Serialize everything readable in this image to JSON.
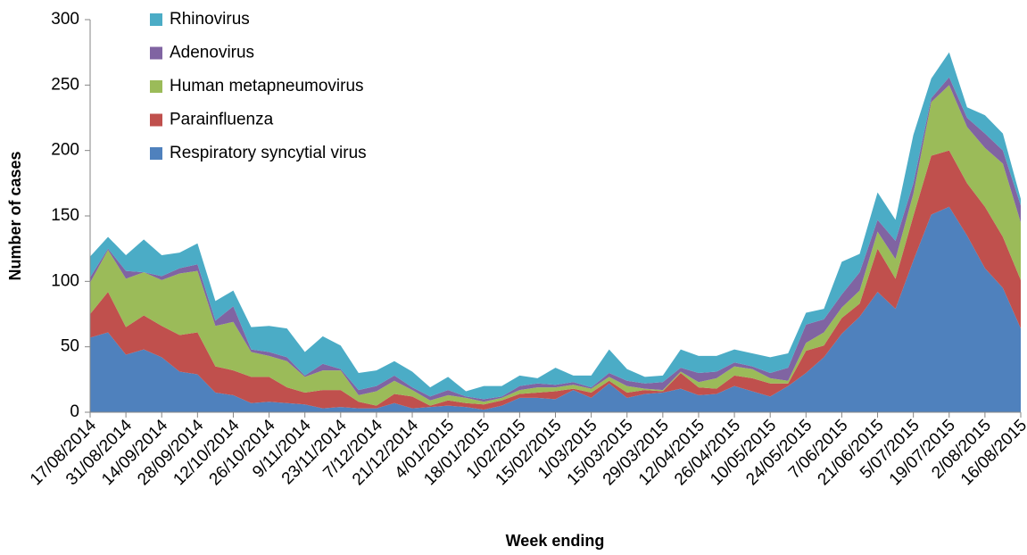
{
  "chart_data": {
    "type": "stacked-area",
    "x_label": "Week ending",
    "y_label": "Number of cases",
    "categories": [
      "17/08/2014",
      null,
      "31/08/2014",
      null,
      "14/09/2014",
      null,
      "28/09/2014",
      null,
      "12/10/2014",
      null,
      "26/10/2014",
      null,
      "9/11/2014",
      null,
      "23/11/2014",
      null,
      "7/12/2014",
      null,
      "21/12/2014",
      null,
      "4/01/2015",
      null,
      "18/01/2015",
      null,
      "1/02/2015",
      null,
      "15/02/2015",
      null,
      "1/03/2015",
      null,
      "15/03/2015",
      null,
      "29/03/2015",
      null,
      "12/04/2015",
      null,
      "26/04/2015",
      null,
      "10/05/2015",
      null,
      "24/05/2015",
      null,
      "7/06/2015",
      null,
      "21/06/2015",
      null,
      "5/07/2015",
      null,
      "19/07/2015",
      null,
      "2/08/2015",
      null,
      "16/08/2015"
    ],
    "series": [
      {
        "name": "Respiratory syncytial virus",
        "color": "#4f81bd",
        "values": [
          57,
          61,
          44,
          48,
          42,
          31,
          29,
          15,
          13,
          7,
          8,
          7,
          6,
          3,
          4,
          3,
          3,
          7,
          3,
          4,
          5,
          4,
          2,
          5,
          11,
          11,
          10,
          17,
          11,
          22,
          11,
          14,
          15,
          18,
          13,
          14,
          20,
          16,
          12,
          20,
          30,
          42,
          60,
          73,
          92,
          79,
          116,
          151,
          157,
          135,
          110,
          95,
          64
        ]
      },
      {
        "name": "Parainfluenza",
        "color": "#c0504d",
        "values": [
          18,
          31,
          21,
          26,
          24,
          28,
          32,
          20,
          19,
          20,
          19,
          12,
          9,
          14,
          13,
          5,
          2,
          7,
          9,
          1,
          4,
          3,
          4,
          4,
          3,
          4,
          6,
          1,
          4,
          2,
          4,
          3,
          1,
          12,
          6,
          4,
          8,
          10,
          10,
          2,
          17,
          9,
          12,
          10,
          33,
          23,
          34,
          45,
          43,
          40,
          47,
          39,
          37
        ]
      },
      {
        "name": "Human metapneumovirus",
        "color": "#9bbb59",
        "values": [
          24,
          32,
          37,
          33,
          35,
          47,
          47,
          31,
          37,
          19,
          16,
          20,
          12,
          15,
          15,
          5,
          11,
          10,
          5,
          4,
          4,
          4,
          2,
          2,
          3,
          4,
          3,
          3,
          3,
          3,
          5,
          1,
          1,
          1,
          4,
          8,
          7,
          7,
          4,
          2,
          6,
          10,
          8,
          10,
          13,
          15,
          17,
          41,
          50,
          43,
          45,
          56,
          44
        ]
      },
      {
        "name": "Adenovirus",
        "color": "#8064a2",
        "values": [
          4,
          1,
          6,
          0,
          3,
          4,
          5,
          4,
          12,
          2,
          3,
          3,
          1,
          5,
          1,
          4,
          4,
          4,
          2,
          3,
          4,
          1,
          2,
          1,
          3,
          3,
          2,
          2,
          1,
          3,
          4,
          4,
          6,
          3,
          7,
          5,
          3,
          2,
          4,
          10,
          14,
          10,
          10,
          14,
          9,
          14,
          8,
          3,
          6,
          7,
          11,
          10,
          13
        ]
      },
      {
        "name": "Rhinovirus",
        "color": "#4bacc6",
        "values": [
          16,
          9,
          12,
          25,
          16,
          12,
          16,
          15,
          12,
          17,
          20,
          22,
          18,
          21,
          18,
          13,
          12,
          11,
          12,
          7,
          10,
          4,
          10,
          8,
          8,
          4,
          13,
          5,
          9,
          18,
          9,
          5,
          5,
          14,
          13,
          12,
          10,
          10,
          12,
          11,
          9,
          8,
          25,
          14,
          21,
          16,
          37,
          15,
          19,
          8,
          14,
          13,
          5
        ]
      }
    ],
    "ylim": [
      0,
      300
    ],
    "yticks": [
      0,
      50,
      100,
      150,
      200,
      250,
      300
    ],
    "grid": false,
    "legend": "upper-left"
  }
}
